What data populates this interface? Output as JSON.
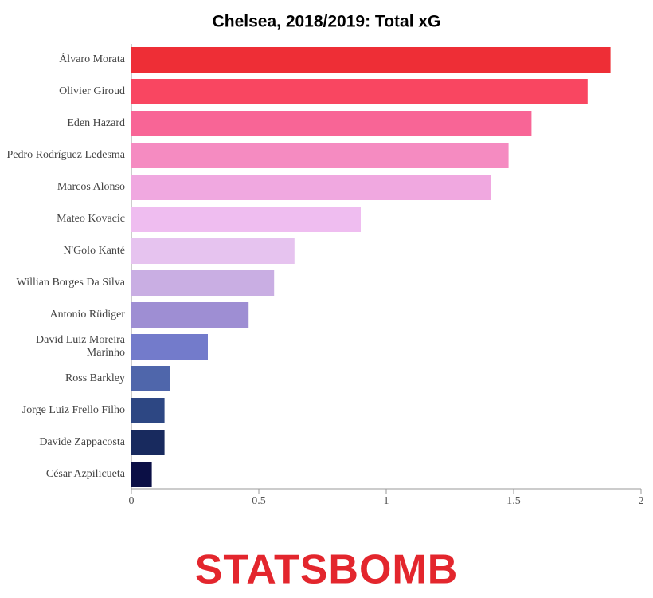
{
  "chart_data": {
    "type": "bar",
    "orientation": "horizontal",
    "title": "Chelsea, 2018/2019: Total xG",
    "categories": [
      "Álvaro Morata",
      "Olivier Giroud",
      "Eden Hazard",
      "Pedro Rodríguez Ledesma",
      "Marcos Alonso",
      "Mateo Kovacic",
      "N'Golo Kanté",
      "Willian Borges Da Silva",
      "Antonio Rüdiger",
      "David Luiz Moreira Marinho",
      "Ross Barkley",
      "Jorge Luiz Frello Filho",
      "Davide Zappacosta",
      "César Azpilicueta"
    ],
    "values": [
      1.88,
      1.79,
      1.57,
      1.48,
      1.41,
      0.9,
      0.64,
      0.56,
      0.46,
      0.3,
      0.15,
      0.13,
      0.13,
      0.08
    ],
    "colors": [
      "#ee2e36",
      "#f94661",
      "#f86596",
      "#f58bc1",
      "#f0a8e0",
      "#efbdf0",
      "#e6c3ef",
      "#c9aee3",
      "#9e8ed3",
      "#737bcb",
      "#4f66ab",
      "#2d4783",
      "#182a5e",
      "#0b0f45"
    ],
    "xlim": [
      0,
      2
    ],
    "xticks": [
      0,
      0.5,
      1,
      1.5,
      2
    ]
  },
  "logo": "STATSBOMB"
}
